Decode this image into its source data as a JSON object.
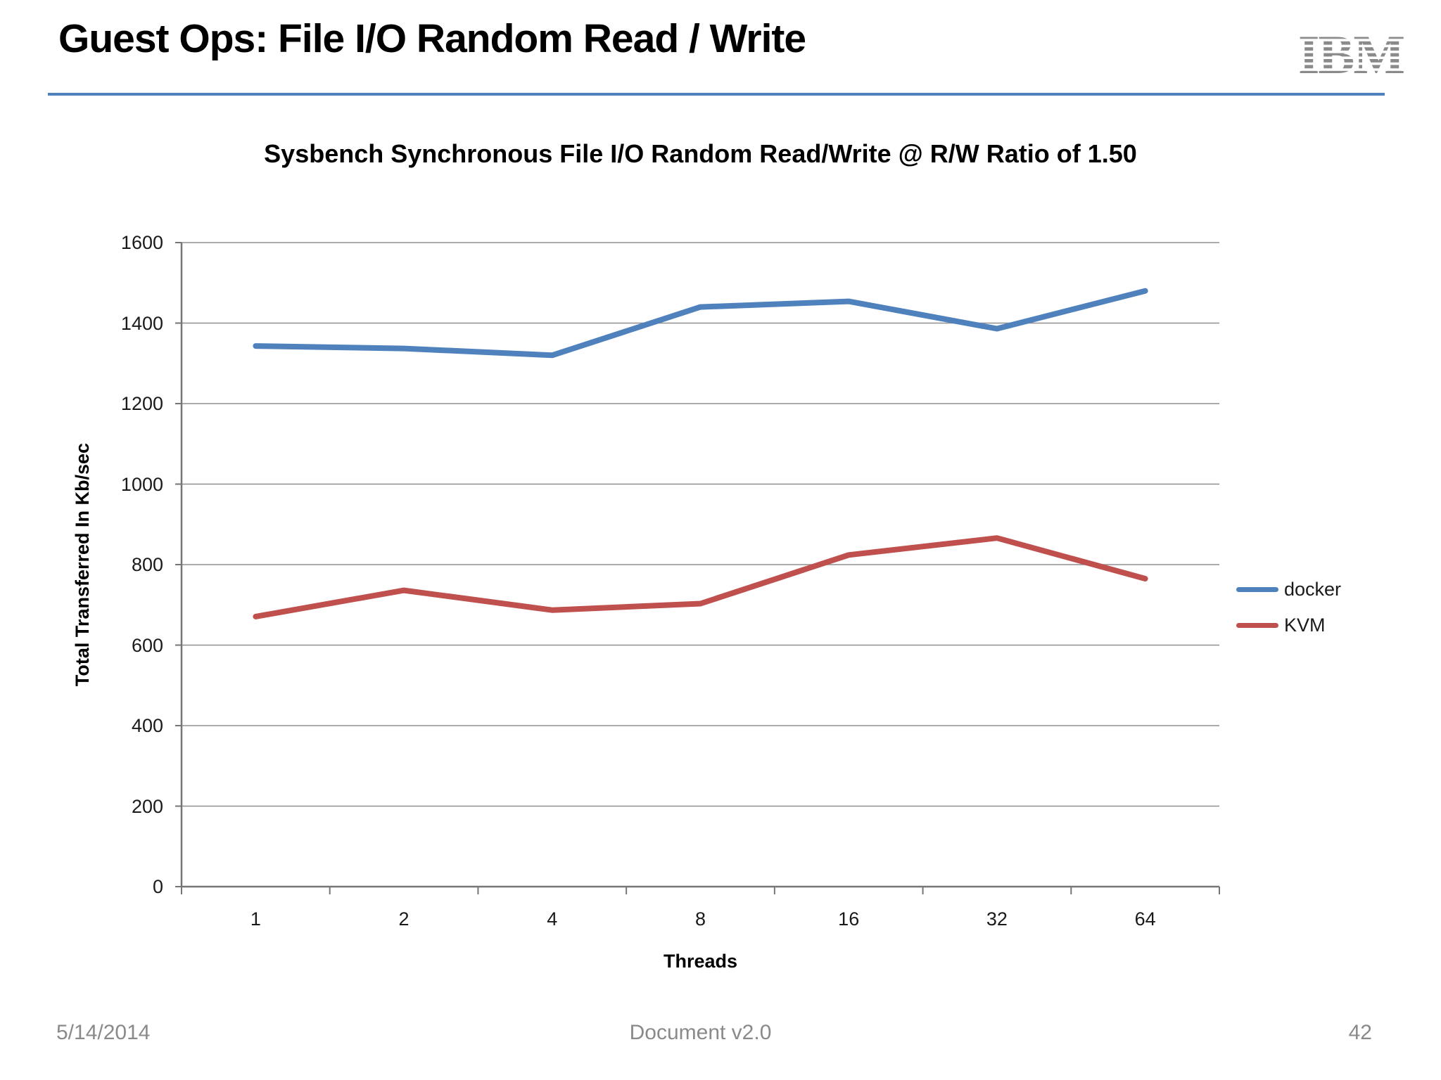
{
  "header": {
    "title": "Guest Ops: File I/O Random Read / Write",
    "logo_text": "IBM"
  },
  "chart_data": {
    "type": "line",
    "title": "Sysbench Synchronous File I/O Random Read/Write @ R/W Ratio of 1.50",
    "categories": [
      "1",
      "2",
      "4",
      "8",
      "16",
      "32",
      "64"
    ],
    "series": [
      {
        "name": "docker",
        "color": "#4f81bd",
        "values": [
          1343,
          1337,
          1320,
          1440,
          1454,
          1386,
          1480
        ]
      },
      {
        "name": "KVM",
        "color": "#c0504d",
        "values": [
          671,
          736,
          687,
          703,
          824,
          866,
          765
        ]
      }
    ],
    "xlabel": "Threads",
    "ylabel": "Total Transferred In Kb/sec",
    "ylim": [
      0,
      1600
    ],
    "y_tick_step": 200,
    "grid": true,
    "legend_position": "right",
    "gridline_color": "#8f8f8f",
    "axis_color": "#767676"
  },
  "footer": {
    "date": "5/14/2014",
    "version": "Document v2.0",
    "page": "42"
  }
}
